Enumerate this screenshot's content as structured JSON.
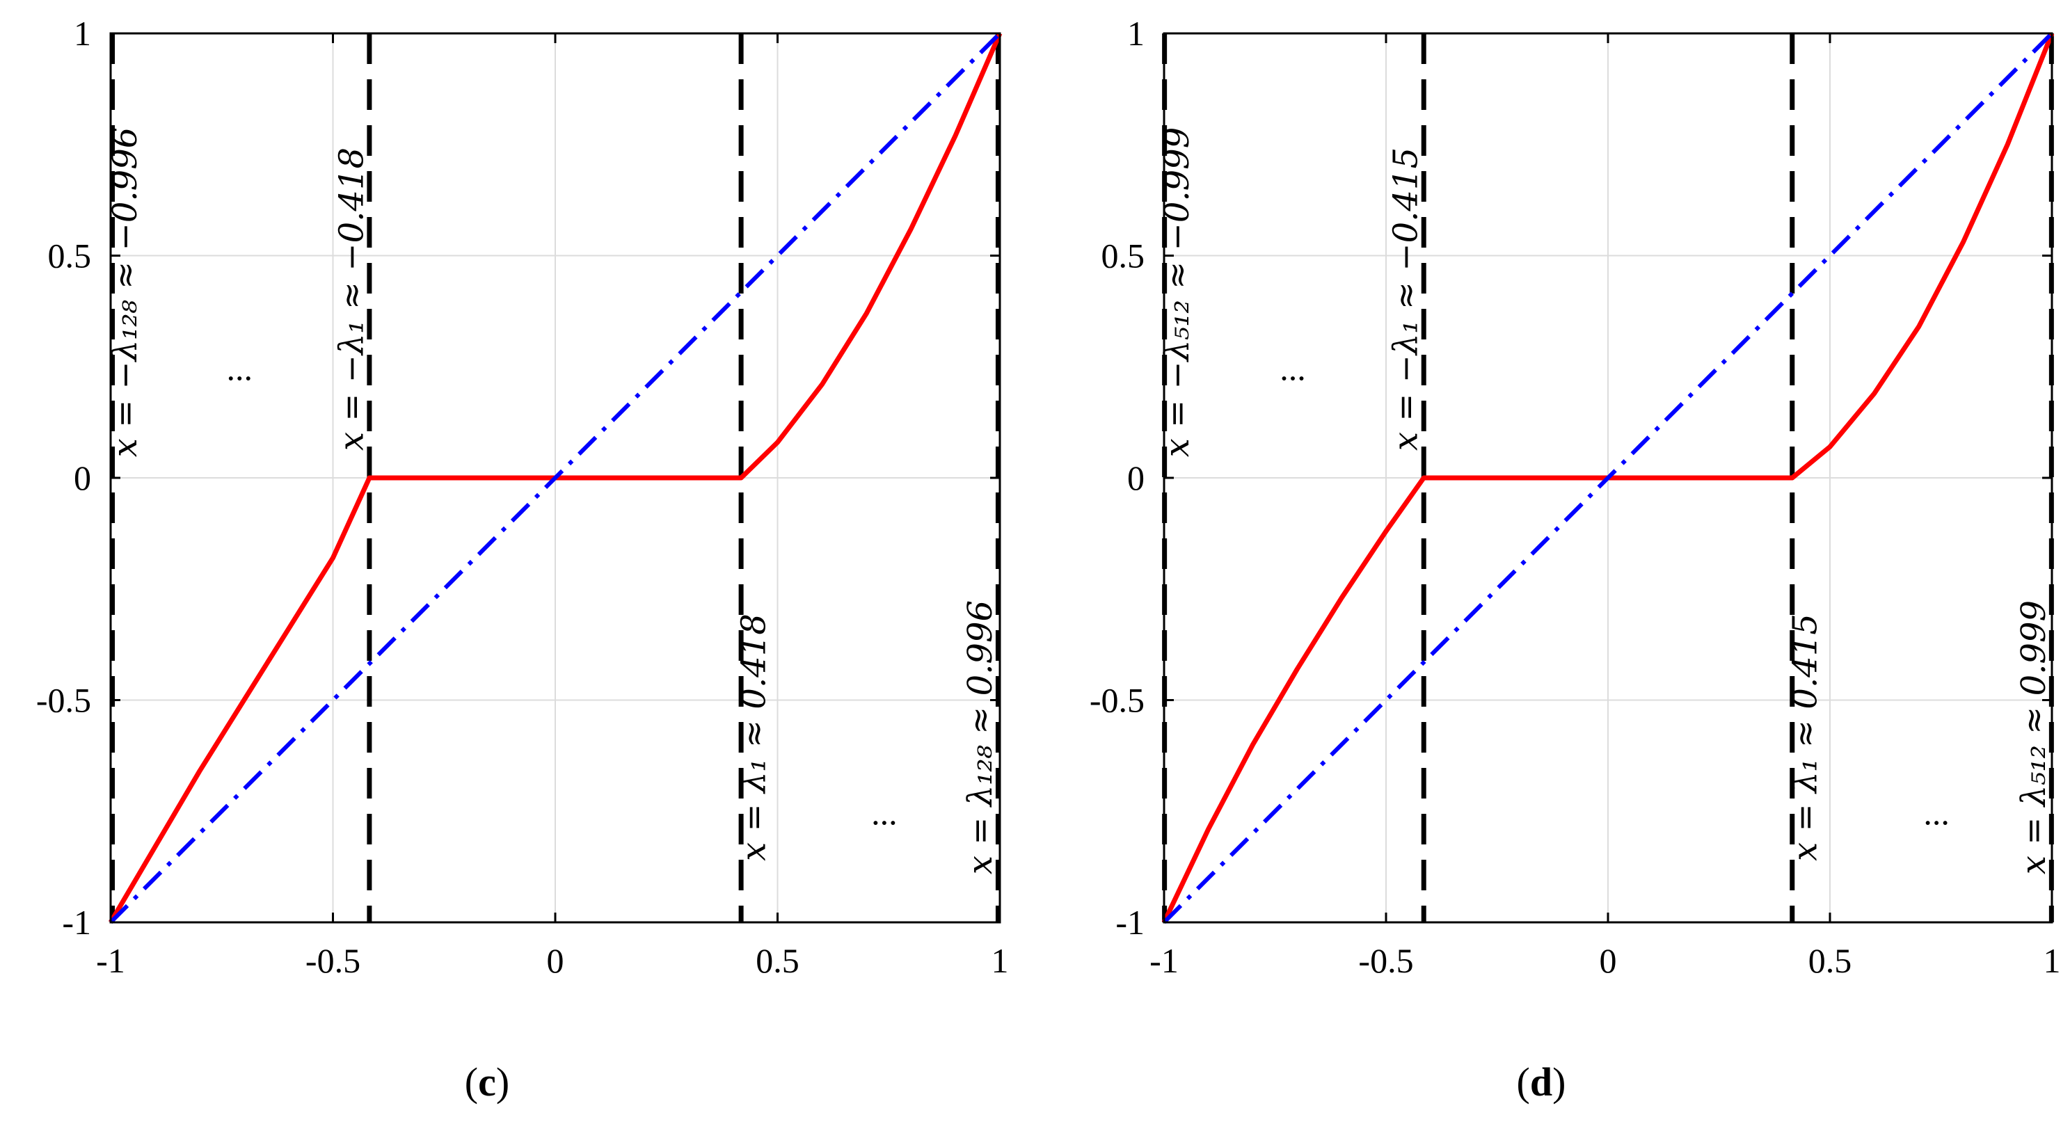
{
  "chart_data": [
    {
      "type": "line",
      "caption": "(c)",
      "caption_letter": "c",
      "xlim": [
        -1,
        1
      ],
      "ylim": [
        -1,
        1
      ],
      "xticks": [
        "-1",
        "-0.5",
        "0",
        "0.5",
        "1"
      ],
      "yticks": [
        "1",
        "0.5",
        "0",
        "-0.5",
        "-1"
      ],
      "grid": true,
      "lambda1": 0.418,
      "lambdaN": 0.996,
      "vline_labels": [
        {
          "text": "x = −λ₁₂₈ ≈ −0.996"
        },
        {
          "text": "x = −λ₁ ≈ −0.418"
        },
        {
          "text": "x = λ₁ ≈ 0.418"
        },
        {
          "text": "x = λ₁₂₈ ≈ 0.996"
        }
      ],
      "ellipsis": "...",
      "series": [
        {
          "style": "solid",
          "color": "#ff0000",
          "x": [
            -1,
            -0.9,
            -0.8,
            -0.7,
            -0.6,
            -0.5,
            -0.418,
            0,
            0.418,
            0.5,
            0.6,
            0.7,
            0.8,
            0.9,
            1
          ],
          "y": [
            -1,
            -0.83,
            -0.66,
            -0.5,
            -0.34,
            -0.18,
            0,
            0,
            0,
            0.08,
            0.21,
            0.37,
            0.56,
            0.77,
            1
          ]
        },
        {
          "style": "dash-dot",
          "color": "#0000ff",
          "x": [
            -1,
            1
          ],
          "y": [
            -1,
            1
          ]
        }
      ]
    },
    {
      "type": "line",
      "caption": "(d)",
      "caption_letter": "d",
      "xlim": [
        -1,
        1
      ],
      "ylim": [
        -1,
        1
      ],
      "xticks": [
        "-1",
        "-0.5",
        "0",
        "0.5",
        "1"
      ],
      "yticks": [
        "1",
        "0.5",
        "0",
        "-0.5",
        "-1"
      ],
      "grid": true,
      "lambda1": 0.415,
      "lambdaN": 0.999,
      "vline_labels": [
        {
          "text": "x = −λ₅₁₂ ≈ −0.999"
        },
        {
          "text": "x = −λ₁ ≈ −0.415"
        },
        {
          "text": "x = λ₁ ≈ 0.415"
        },
        {
          "text": "x = λ₅₁₂ ≈ 0.999"
        }
      ],
      "ellipsis": "...",
      "series": [
        {
          "style": "solid",
          "color": "#ff0000",
          "x": [
            -1,
            -0.9,
            -0.8,
            -0.7,
            -0.6,
            -0.5,
            -0.415,
            0,
            0.415,
            0.5,
            0.6,
            0.7,
            0.8,
            0.9,
            1
          ],
          "y": [
            -1,
            -0.79,
            -0.6,
            -0.43,
            -0.27,
            -0.12,
            0,
            0,
            0,
            0.07,
            0.19,
            0.34,
            0.53,
            0.75,
            1
          ]
        },
        {
          "style": "dash-dot",
          "color": "#0000ff",
          "x": [
            -1,
            1
          ],
          "y": [
            -1,
            1
          ]
        }
      ]
    }
  ]
}
